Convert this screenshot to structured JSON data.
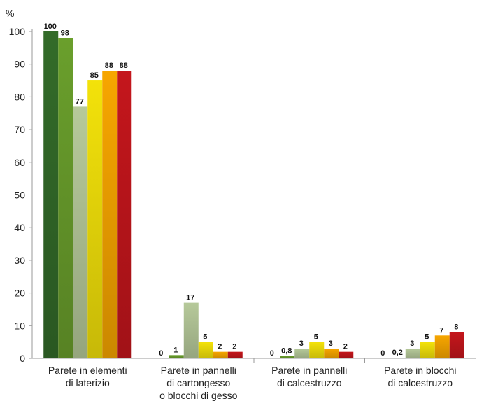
{
  "chart_data": {
    "type": "bar",
    "ylabel": "%",
    "ylim": [
      0,
      100
    ],
    "yticks": [
      0,
      10,
      20,
      30,
      40,
      50,
      60,
      70,
      80,
      90,
      100
    ],
    "grid": false,
    "categories": [
      [
        "Parete in elementi",
        "di laterizio"
      ],
      [
        "Parete in pannelli",
        "di cartongesso",
        "o blocchi di gesso"
      ],
      [
        "Parete in pannelli",
        "di calcestruzzo"
      ],
      [
        "Parete in blocchi",
        "di calcestruzzo"
      ]
    ],
    "series": [
      {
        "color": "#336b29",
        "values": [
          100,
          0,
          0,
          0
        ],
        "labels": [
          "100",
          "0",
          "0",
          "0"
        ]
      },
      {
        "color": "#6a9f2c",
        "values": [
          98,
          1,
          0.8,
          0.2
        ],
        "labels": [
          "98",
          "1",
          "0,8",
          "0,2"
        ]
      },
      {
        "color": "#b6c99a",
        "values": [
          77,
          17,
          3,
          3
        ],
        "labels": [
          "77",
          "17",
          "3",
          "3"
        ]
      },
      {
        "color": "#f3e20a",
        "values": [
          85,
          5,
          5,
          5
        ],
        "labels": [
          "85",
          "5",
          "5",
          "5"
        ]
      },
      {
        "color": "#f7a600",
        "values": [
          88,
          2,
          3,
          7
        ],
        "labels": [
          "88",
          "2",
          "3",
          "7"
        ]
      },
      {
        "color": "#c4161c",
        "values": [
          88,
          2,
          2,
          8
        ],
        "labels": [
          "88",
          "2",
          "2",
          "8"
        ]
      }
    ]
  }
}
